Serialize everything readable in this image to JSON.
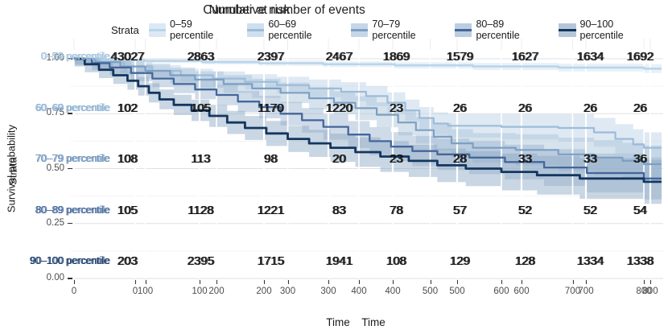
{
  "figure": {
    "risk_table_title": "Number at risk",
    "events_table_title": "Cumulative number of events",
    "legend_title": "Strata",
    "y_axis_label": "Survival probability",
    "y_axis_overlay_label": "Strata",
    "x_axis_label": "Time",
    "x_axis_label_2": "Time"
  },
  "legend_items": [
    {
      "label": "0–59 percentile",
      "line": "#b9d5ea",
      "fill": "#dce9f5"
    },
    {
      "label": "60–69 percentile",
      "line": "#9dbcd9",
      "fill": "#cfdfee"
    },
    {
      "label": "70–79 percentile",
      "line": "#7d9fc2",
      "fill": "#c5d6e8"
    },
    {
      "label": "80–89 percentile",
      "line": "#44679a",
      "fill": "#bccde1"
    },
    {
      "label": "90–100 percentile",
      "line": "#14365f",
      "fill": "#b6c6da"
    }
  ],
  "y_ticks": [
    "1.00",
    "0.75",
    "0.50",
    "0.25",
    "0.00"
  ],
  "x_ticks": [
    "0",
    "100",
    "200",
    "300",
    "400",
    "500",
    "600",
    "700",
    "800"
  ],
  "table_rows": [
    {
      "label": "0–59 percentile",
      "color": "#a6c4e1",
      "values": [
        "43027",
        "2863",
        "2397",
        "2467",
        "1869",
        "1579",
        "1627",
        "1634",
        "1692"
      ]
    },
    {
      "label": "60–69 percentile",
      "color": "#8cb0d3",
      "values": [
        "102",
        "105",
        "1170",
        "1220",
        "23",
        "26",
        "26",
        "26",
        "26"
      ]
    },
    {
      "label": "70–79 percentile",
      "color": "#6d93ba",
      "values": [
        "108",
        "113",
        "98",
        "20",
        "23",
        "28",
        "33",
        "33",
        "36"
      ]
    },
    {
      "label": "80–89 percentile",
      "color": "#46699b",
      "values": [
        "105",
        "1128",
        "1221",
        "83",
        "78",
        "57",
        "52",
        "52",
        "54"
      ]
    },
    {
      "label": "90–100 percentile",
      "color": "#173a67",
      "values": [
        "203",
        "2395",
        "1715",
        "1941",
        "108",
        "129",
        "128",
        "1334",
        "1338"
      ]
    }
  ],
  "chart_data": {
    "type": "line",
    "subtype": "kaplan-meier-step-with-ci",
    "title": "Number at risk / Cumulative number of events (overlaid tables)",
    "xlabel": "Time",
    "ylabel": "Survival probability",
    "xlim": [
      0,
      800
    ],
    "ylim": [
      0,
      1
    ],
    "x_ticks": [
      0,
      100,
      200,
      300,
      400,
      500,
      600,
      700,
      800
    ],
    "y_ticks": [
      0,
      0.25,
      0.5,
      0.75,
      1.0
    ],
    "grid": true,
    "legend_position": "top",
    "series": [
      {
        "name": "0–59 percentile",
        "line_color": "#b9d5ea",
        "fill_color": "#cfe2f1",
        "line_width": 2.6,
        "ci": [
          0.008,
          0.02
        ],
        "points": [
          [
            0,
            1
          ],
          [
            40,
            0.995
          ],
          [
            100,
            0.99
          ],
          [
            180,
            0.985
          ],
          [
            260,
            0.98
          ],
          [
            350,
            0.975
          ],
          [
            450,
            0.97
          ],
          [
            560,
            0.965
          ],
          [
            680,
            0.96
          ],
          [
            800,
            0.955
          ]
        ]
      },
      {
        "name": "60–69 percentile",
        "line_color": "#9dbcd9",
        "fill_color": "#bcd2e6",
        "line_width": 2.2,
        "ci": [
          0.02,
          0.07
        ],
        "points": [
          [
            0,
            1
          ],
          [
            35,
            0.985
          ],
          [
            70,
            0.965
          ],
          [
            110,
            0.945
          ],
          [
            150,
            0.925
          ],
          [
            195,
            0.91
          ],
          [
            240,
            0.895
          ],
          [
            285,
            0.88
          ],
          [
            330,
            0.865
          ],
          [
            375,
            0.85
          ],
          [
            410,
            0.83
          ],
          [
            440,
            0.8
          ],
          [
            465,
            0.765
          ],
          [
            485,
            0.73
          ],
          [
            505,
            0.705
          ],
          [
            525,
            0.695
          ],
          [
            600,
            0.69
          ],
          [
            680,
            0.685
          ],
          [
            730,
            0.665
          ],
          [
            760,
            0.635
          ],
          [
            785,
            0.61
          ],
          [
            800,
            0.595
          ]
        ]
      },
      {
        "name": "70–79 percentile",
        "line_color": "#7d9fc2",
        "fill_color": "#aac4da",
        "line_width": 2.2,
        "ci": [
          0.025,
          0.085
        ],
        "points": [
          [
            0,
            1
          ],
          [
            30,
            0.985
          ],
          [
            65,
            0.965
          ],
          [
            100,
            0.945
          ],
          [
            135,
            0.925
          ],
          [
            170,
            0.905
          ],
          [
            210,
            0.885
          ],
          [
            250,
            0.865
          ],
          [
            290,
            0.845
          ],
          [
            330,
            0.82
          ],
          [
            365,
            0.8
          ],
          [
            395,
            0.775
          ],
          [
            425,
            0.745
          ],
          [
            455,
            0.71
          ],
          [
            480,
            0.675
          ],
          [
            505,
            0.645
          ],
          [
            530,
            0.615
          ],
          [
            560,
            0.595
          ],
          [
            620,
            0.585
          ],
          [
            680,
            0.565
          ],
          [
            730,
            0.55
          ],
          [
            770,
            0.535
          ],
          [
            800,
            0.52
          ]
        ]
      },
      {
        "name": "80–89 percentile",
        "line_color": "#44679a",
        "fill_color": "#9ab4cf",
        "line_width": 2.3,
        "ci": [
          0.03,
          0.095
        ],
        "points": [
          [
            0,
            1
          ],
          [
            25,
            0.98
          ],
          [
            50,
            0.96
          ],
          [
            80,
            0.935
          ],
          [
            110,
            0.91
          ],
          [
            140,
            0.885
          ],
          [
            170,
            0.86
          ],
          [
            200,
            0.835
          ],
          [
            230,
            0.805
          ],
          [
            260,
            0.78
          ],
          [
            290,
            0.75
          ],
          [
            320,
            0.72
          ],
          [
            350,
            0.69
          ],
          [
            385,
            0.655
          ],
          [
            415,
            0.625
          ],
          [
            445,
            0.6
          ],
          [
            475,
            0.58
          ],
          [
            510,
            0.565
          ],
          [
            555,
            0.55
          ],
          [
            605,
            0.53
          ],
          [
            660,
            0.505
          ],
          [
            720,
            0.48
          ],
          [
            800,
            0.455
          ]
        ]
      },
      {
        "name": "90–100 percentile",
        "line_color": "#14365f",
        "fill_color": "#8fa9c4",
        "line_width": 2.8,
        "ci": [
          0.035,
          0.1
        ],
        "points": [
          [
            0,
            1
          ],
          [
            15,
            0.975
          ],
          [
            35,
            0.95
          ],
          [
            55,
            0.925
          ],
          [
            75,
            0.9
          ],
          [
            90,
            0.875
          ],
          [
            105,
            0.845
          ],
          [
            120,
            0.815
          ],
          [
            140,
            0.79
          ],
          [
            165,
            0.765
          ],
          [
            190,
            0.74
          ],
          [
            215,
            0.71
          ],
          [
            240,
            0.685
          ],
          [
            270,
            0.66
          ],
          [
            300,
            0.635
          ],
          [
            330,
            0.615
          ],
          [
            360,
            0.595
          ],
          [
            395,
            0.575
          ],
          [
            430,
            0.555
          ],
          [
            470,
            0.535
          ],
          [
            510,
            0.515
          ],
          [
            550,
            0.5
          ],
          [
            600,
            0.485
          ],
          [
            650,
            0.47
          ],
          [
            710,
            0.455
          ],
          [
            800,
            0.44
          ]
        ]
      }
    ]
  }
}
